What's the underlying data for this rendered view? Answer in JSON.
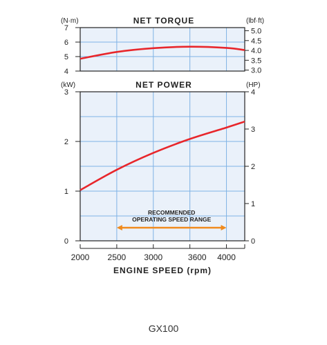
{
  "colors": {
    "plot_bg": "#eaf1fa",
    "grid": "#7fb2e5",
    "curve": "#e8262b",
    "arrow": "#f08a1c",
    "axis": "#222222"
  },
  "footer_label": "GX100",
  "x_axis": {
    "label": "ENGINE SPEED (rpm)",
    "range": [
      2000,
      4250
    ],
    "tick_labels": [
      "2000",
      "2500",
      "3000",
      "3600",
      "4000"
    ],
    "tick_values": [
      2000,
      2500,
      3000,
      3600,
      4000
    ]
  },
  "annotation": {
    "text_line1": "RECOMMENDED",
    "text_line2": "OPERATING SPEED RANGE",
    "range": [
      2500,
      4000
    ]
  },
  "chart_data": [
    {
      "type": "line",
      "title": "NET TORQUE",
      "ylabel_left": "(N·m)",
      "ylabel_right": "(lbf·ft)",
      "ylim": [
        4,
        7
      ],
      "yticks": [
        "4",
        "5",
        "6",
        "7"
      ],
      "right_ylim": [
        2.95,
        5.16
      ],
      "right_ticks": [
        "3.0",
        "3.5",
        "4.0",
        "4.5",
        "5.0"
      ],
      "grid": true,
      "series": [
        {
          "x": [
            2000,
            2500,
            3000,
            3500,
            4000,
            4250
          ],
          "values": [
            4.85,
            5.32,
            5.58,
            5.68,
            5.6,
            5.45
          ]
        }
      ]
    },
    {
      "type": "line",
      "title": "NET POWER",
      "ylabel_left": "(kW)",
      "ylabel_right": "(HP)",
      "ylim": [
        0,
        3
      ],
      "yticks": [
        "0",
        "1",
        "2",
        "3"
      ],
      "right_ylim": [
        0,
        4
      ],
      "right_ticks": [
        "0",
        "1",
        "2",
        "3",
        "4"
      ],
      "grid": true,
      "series": [
        {
          "x": [
            2000,
            2500,
            3000,
            3500,
            4000,
            4250
          ],
          "values": [
            1.02,
            1.43,
            1.77,
            2.05,
            2.28,
            2.4
          ]
        }
      ]
    }
  ]
}
